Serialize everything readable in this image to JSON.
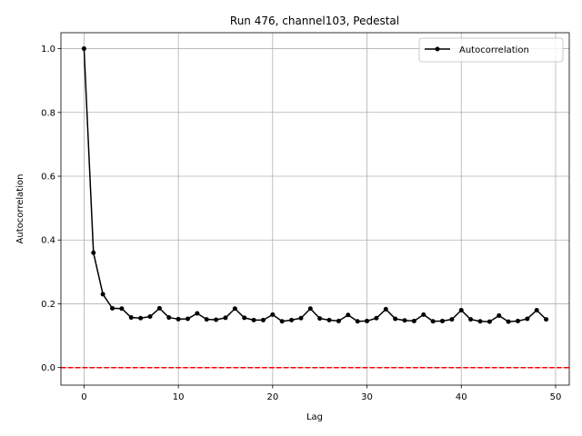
{
  "chart_data": {
    "type": "line",
    "title": "Run 476, channel103, Pedestal",
    "xlabel": "Lag",
    "ylabel": "Autocorrelation",
    "xlim": [
      -2.45,
      51.45
    ],
    "ylim": [
      -0.055,
      1.05
    ],
    "x_ticks": [
      0,
      10,
      20,
      30,
      40,
      50
    ],
    "y_ticks": [
      0.0,
      0.2,
      0.4,
      0.6,
      0.8,
      1.0
    ],
    "x_tick_labels": [
      "0",
      "10",
      "20",
      "30",
      "40",
      "50"
    ],
    "y_tick_labels": [
      "0.0",
      "0.2",
      "0.4",
      "0.6",
      "0.8",
      "1.0"
    ],
    "grid": true,
    "legend_position": "top-right",
    "reference_line": {
      "y": 0.0,
      "color": "#ff0000",
      "style": "dashed"
    },
    "series": [
      {
        "name": "Autocorrelation",
        "color": "#000000",
        "marker": "circle",
        "x": [
          0,
          1,
          2,
          3,
          4,
          5,
          6,
          7,
          8,
          9,
          10,
          11,
          12,
          13,
          14,
          15,
          16,
          17,
          18,
          19,
          20,
          21,
          22,
          23,
          24,
          25,
          26,
          27,
          28,
          29,
          30,
          31,
          32,
          33,
          34,
          35,
          36,
          37,
          38,
          39,
          40,
          41,
          42,
          43,
          44,
          45,
          46,
          47,
          48,
          49
        ],
        "values": [
          1.0,
          0.36,
          0.23,
          0.186,
          0.185,
          0.157,
          0.155,
          0.16,
          0.186,
          0.157,
          0.152,
          0.153,
          0.17,
          0.151,
          0.15,
          0.156,
          0.185,
          0.156,
          0.149,
          0.149,
          0.166,
          0.145,
          0.149,
          0.155,
          0.185,
          0.154,
          0.149,
          0.146,
          0.165,
          0.145,
          0.146,
          0.155,
          0.183,
          0.153,
          0.148,
          0.146,
          0.166,
          0.145,
          0.146,
          0.151,
          0.18,
          0.151,
          0.145,
          0.144,
          0.163,
          0.144,
          0.146,
          0.153,
          0.18,
          0.151
        ]
      }
    ]
  }
}
